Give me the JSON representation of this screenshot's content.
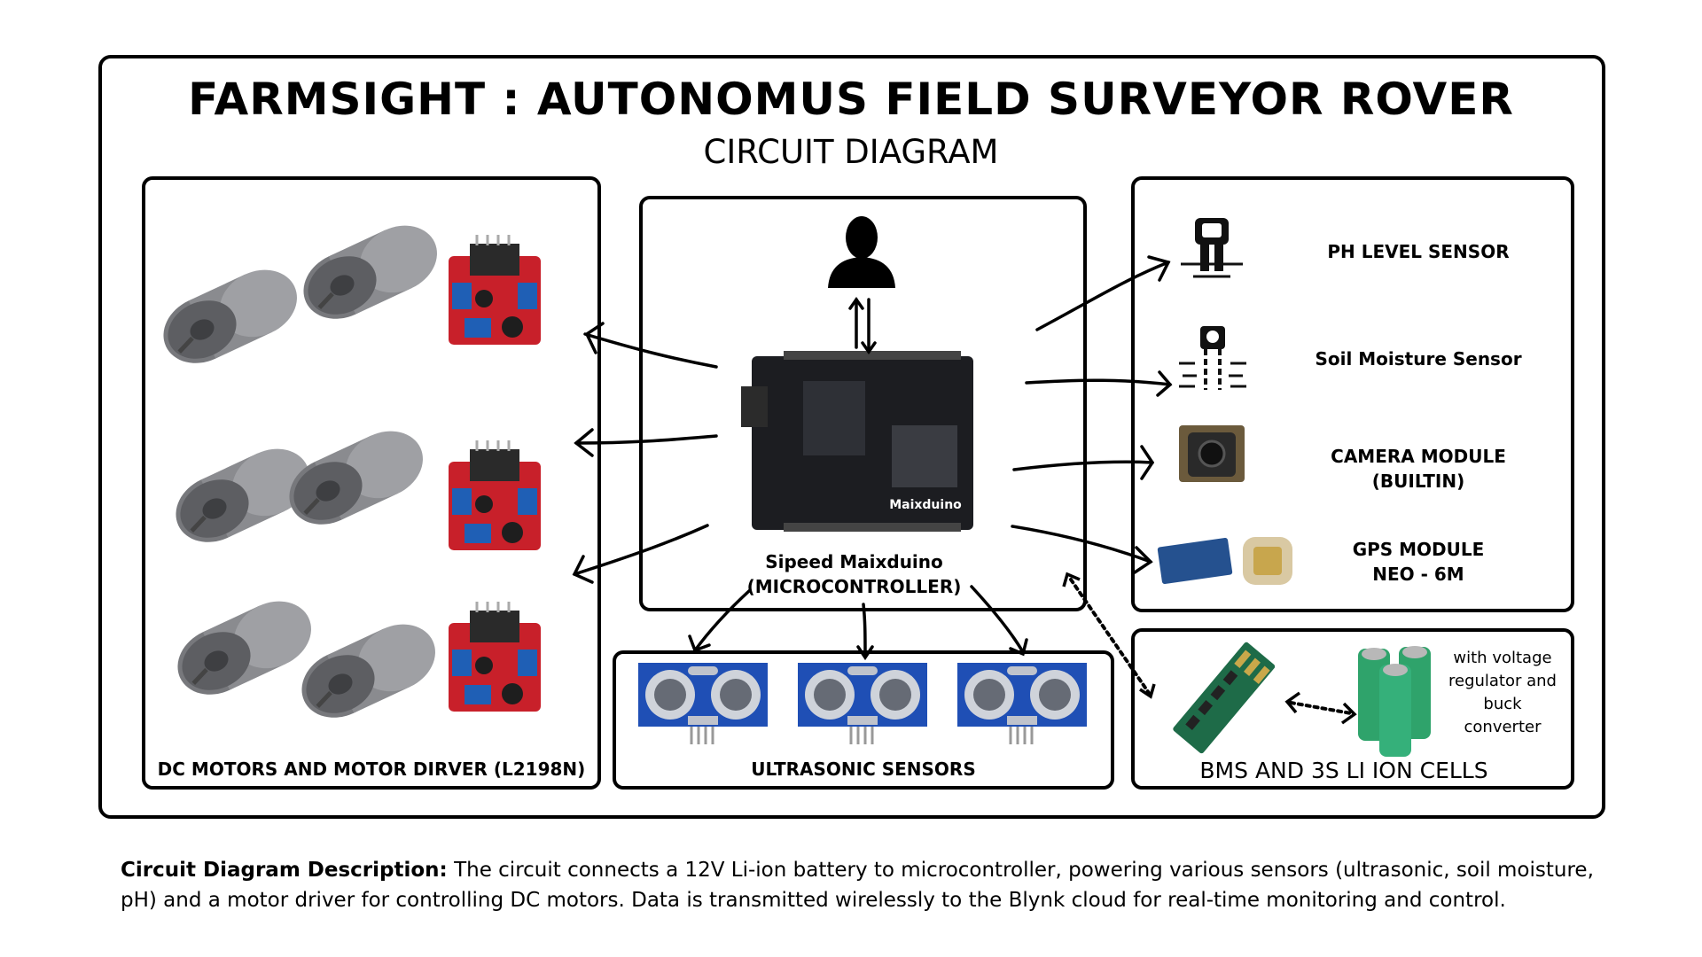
{
  "title": "FARMSIGHT : AUTONOMUS FIELD SURVEYOR ROVER",
  "subtitle": "CIRCUIT DIAGRAM",
  "left_panel": {
    "label": "DC MOTORS AND MOTOR DIRVER (L2198N)"
  },
  "center_panel": {
    "label_line1": "Sipeed Maixduino",
    "label_line2": "(MICROCONTROLLER)",
    "board_text": "Maixduino"
  },
  "ultrasonic_panel": {
    "label": "ULTRASONIC SENSORS"
  },
  "right_panel": {
    "ph": "PH LEVEL SENSOR",
    "soil": "Soil Moisture Sensor",
    "camera_line1": "CAMERA MODULE",
    "camera_line2": "(BUILTIN)",
    "gps_line1": "GPS MODULE",
    "gps_line2": "NEO - 6M"
  },
  "power_panel": {
    "label": "BMS AND 3S LI ION CELLS",
    "note_line1": "with voltage",
    "note_line2": "regulator and",
    "note_line3": "buck",
    "note_line4": "converter"
  },
  "description": {
    "heading": "Circuit Diagram Description:",
    "text": " The circuit connects a 12V Li-ion battery to microcontroller, powering various sensors (ultrasonic, soil moisture, pH) and a motor driver for controlling DC motors. Data is transmitted wirelessly to the Blynk cloud for real-time monitoring and control."
  },
  "colors": {
    "border": "#000000",
    "driver_red": "#c8202a",
    "sensor_blue": "#1f4fb5",
    "battery_green": "#2fa36b",
    "motor_gray": "#6e6f73"
  },
  "icons": [
    "person-icon",
    "ph-sensor-icon",
    "soil-sensor-icon",
    "camera-icon",
    "gps-icon",
    "motor-icon",
    "motor-driver-icon",
    "ultrasonic-icon",
    "bms-icon",
    "battery-icon"
  ]
}
